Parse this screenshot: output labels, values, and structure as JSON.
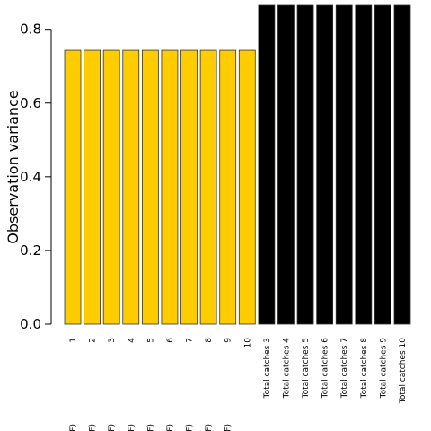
{
  "chart_data": {
    "type": "bar",
    "ylabel": "Observation variance",
    "xlabel": "",
    "ylim": [
      0,
      0.865
    ],
    "yticks": [
      "0.0",
      "0.2",
      "0.4",
      "0.6",
      "0.8"
    ],
    "categories": [
      "1",
      "2",
      "3",
      "4",
      "5",
      "6",
      "7",
      "8",
      "9",
      "10",
      "Total catches 3",
      "Total catches 4",
      "Total catches 5",
      "Total catches 6",
      "Total catches 7",
      "Total catches 8",
      "Total catches 9",
      "Total catches 10"
    ],
    "category_suffixes": [
      "F)",
      "F)",
      "F)",
      "F)",
      "F)",
      "F)",
      "F)",
      "F)",
      "F)",
      "",
      "",
      "",
      "",
      "",
      "",
      "",
      "",
      ""
    ],
    "values": [
      0.743,
      0.743,
      0.743,
      0.743,
      0.743,
      0.743,
      0.743,
      0.743,
      0.743,
      0.743,
      0.865,
      0.865,
      0.865,
      0.865,
      0.865,
      0.865,
      0.865,
      0.865
    ],
    "colors": [
      "#FFCC00",
      "#FFCC00",
      "#FFCC00",
      "#FFCC00",
      "#FFCC00",
      "#FFCC00",
      "#FFCC00",
      "#FFCC00",
      "#FFCC00",
      "#FFCC00",
      "#000000",
      "#000000",
      "#000000",
      "#000000",
      "#000000",
      "#000000",
      "#000000",
      "#000000"
    ],
    "grid": false,
    "legend": "none"
  }
}
